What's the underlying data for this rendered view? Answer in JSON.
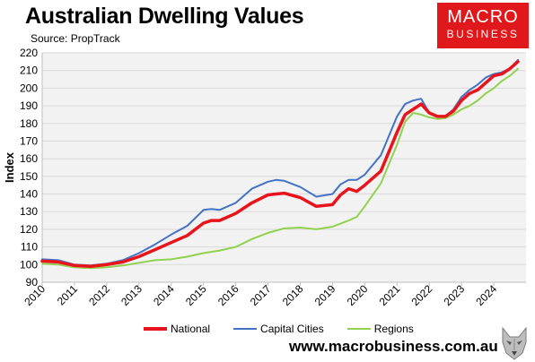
{
  "header": {
    "title": "Australian Dwelling Values",
    "source": "Source: PropTrack"
  },
  "logo": {
    "top": "MACRO",
    "bottom": "BUSINESS"
  },
  "footer": {
    "url": "www.macrobusiness.com.au"
  },
  "colors": {
    "national": "#e8141b",
    "capital": "#4472c4",
    "regions": "#92d050",
    "plot_bg": "#f2f2f2",
    "logo_bg": "#e0171b"
  },
  "chart_data": {
    "type": "line",
    "title": "Australian Dwelling Values",
    "ylabel": "Index",
    "xlabel": "",
    "ylim": [
      90,
      220
    ],
    "xlim": [
      2010,
      2025
    ],
    "yticks": [
      "90",
      "100",
      "110",
      "120",
      "130",
      "140",
      "150",
      "160",
      "170",
      "180",
      "190",
      "200",
      "210",
      "220"
    ],
    "xticks": [
      "2010",
      "2011",
      "2012",
      "2013",
      "2014",
      "2015",
      "2016",
      "2017",
      "2018",
      "2019",
      "2020",
      "2021",
      "2022",
      "2023",
      "2024"
    ],
    "grid": "horizontal",
    "legend": "bottom",
    "series": [
      {
        "name": "National",
        "x": [
          2010,
          2010.5,
          2011,
          2011.5,
          2012,
          2012.5,
          2013,
          2013.5,
          2014,
          2014.5,
          2015,
          2015.25,
          2015.5,
          2016,
          2016.5,
          2017,
          2017.25,
          2017.5,
          2018,
          2018.5,
          2019,
          2019.25,
          2019.5,
          2019.75,
          2020,
          2020.5,
          2021,
          2021.25,
          2021.5,
          2021.75,
          2022,
          2022.25,
          2022.5,
          2022.75,
          2023,
          2023.25,
          2023.5,
          2023.75,
          2024,
          2024.25,
          2024.5,
          2024.75
        ],
        "values": [
          102,
          101.5,
          99.5,
          99,
          100,
          101.5,
          104.5,
          108.5,
          112.5,
          116.5,
          123.5,
          125,
          125,
          129,
          135,
          139.5,
          140,
          140.5,
          138,
          133,
          134,
          139.5,
          143,
          141.5,
          145,
          153,
          175,
          185,
          188,
          191,
          186,
          184,
          184,
          187,
          193,
          197,
          199,
          203,
          207,
          208,
          211,
          215
        ]
      },
      {
        "name": "Capital Cities",
        "x": [
          2010,
          2010.5,
          2011,
          2011.5,
          2012,
          2012.5,
          2013,
          2013.5,
          2014,
          2014.5,
          2015,
          2015.25,
          2015.5,
          2016,
          2016.5,
          2017,
          2017.25,
          2017.5,
          2018,
          2018.5,
          2019,
          2019.25,
          2019.5,
          2019.75,
          2020,
          2020.5,
          2021,
          2021.25,
          2021.5,
          2021.75,
          2022,
          2022.25,
          2022.5,
          2022.75,
          2023,
          2023.25,
          2023.5,
          2023.75,
          2024,
          2024.25,
          2024.5,
          2024.75
        ],
        "values": [
          103,
          102.5,
          100,
          99.5,
          100.5,
          102.5,
          106.5,
          111.5,
          117,
          122,
          131,
          131.5,
          131,
          135,
          143,
          147,
          148,
          147.5,
          144,
          138.5,
          140,
          145.5,
          148,
          148,
          151,
          162,
          184,
          191,
          193,
          194,
          186,
          184,
          184,
          188,
          195,
          199,
          202,
          206,
          208,
          209,
          211,
          216
        ]
      },
      {
        "name": "Regions",
        "x": [
          2010,
          2010.5,
          2011,
          2011.5,
          2012,
          2012.5,
          2013,
          2013.5,
          2014,
          2014.5,
          2015,
          2015.5,
          2016,
          2016.5,
          2017,
          2017.5,
          2018,
          2018.5,
          2019,
          2019.5,
          2019.75,
          2020,
          2020.5,
          2021,
          2021.25,
          2021.5,
          2021.75,
          2022,
          2022.25,
          2022.5,
          2022.75,
          2023,
          2023.25,
          2023.5,
          2023.75,
          2024,
          2024.25,
          2024.5,
          2024.75
        ],
        "values": [
          100.5,
          100,
          98.5,
          98,
          98.5,
          99.5,
          101,
          102.5,
          103,
          104.5,
          106.5,
          108,
          110,
          114.5,
          118,
          120.5,
          121,
          120,
          121.5,
          125,
          127,
          133,
          146,
          168,
          181,
          186,
          185,
          183.5,
          182.5,
          183,
          185,
          188,
          190,
          193,
          197,
          200,
          204,
          207,
          211
        ]
      }
    ]
  }
}
